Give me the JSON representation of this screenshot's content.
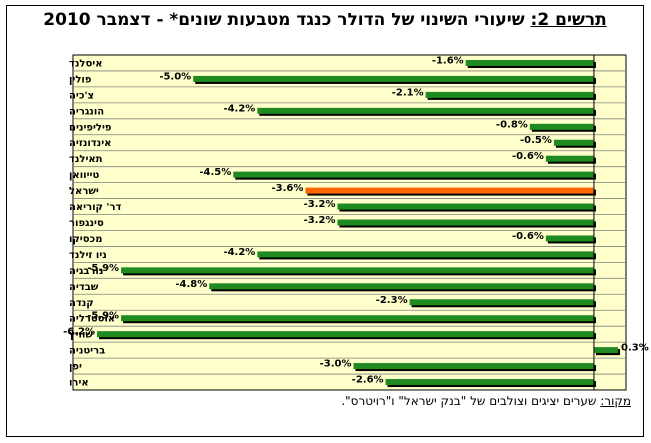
{
  "header": {
    "title_label": "תרשים 2:",
    "title_text": "שיעורי השינוי של הדולר כנגד מטבעות שונים* - דצמבר 2010"
  },
  "footer": {
    "source_label": "מקור:",
    "source_text": "שערים יציגים וצולבים של \"בנק ישראל\" ו\"רויטרס\"."
  },
  "colors": {
    "plot_background": "#ffffcc",
    "bar_default": "#1f8a1f",
    "bar_highlight": "#ff6600",
    "bar_shadow": "#000000",
    "gridline": "#808080"
  },
  "chart_data": {
    "type": "bar",
    "orientation": "horizontal",
    "categories": [
      "איסלנד",
      "פולין",
      "צ'כיה",
      "הונגריה",
      "פיליפינים",
      "אינדונזיה",
      "תאילנד",
      "טייוואן",
      "ישראל",
      "דר' קוריאה",
      "סינגפור",
      "מכסיקו",
      "ניו זילנד",
      "נורבגיה",
      "שבדיה",
      "קנדה",
      "אוסטרליה",
      "שוויץ",
      "בריטניה",
      "יפן",
      "אירו"
    ],
    "values": [
      -1.6,
      -5.0,
      -2.1,
      -4.2,
      -0.8,
      -0.5,
      -0.6,
      -4.5,
      -3.6,
      -3.2,
      -3.2,
      -0.6,
      -4.2,
      -5.9,
      -4.8,
      -2.3,
      -5.9,
      -6.2,
      0.3,
      -3.0,
      -2.6
    ],
    "value_labels": [
      "-1.6%",
      "-5.0%",
      "-2.1%",
      "-4.2%",
      "-0.8%",
      "-0.5%",
      "-0.6%",
      "-4.5%",
      "-3.6%",
      "-3.2%",
      "-3.2%",
      "-0.6%",
      "-4.2%",
      "-5.9%",
      "-4.8%",
      "-2.3%",
      "-5.9%",
      "-6.2%",
      "0.3%",
      "-3.0%",
      "-2.6%"
    ],
    "highlight_category": "ישראל",
    "xlim": [
      -6.5,
      0.4
    ],
    "grid": true,
    "legend": "none"
  }
}
